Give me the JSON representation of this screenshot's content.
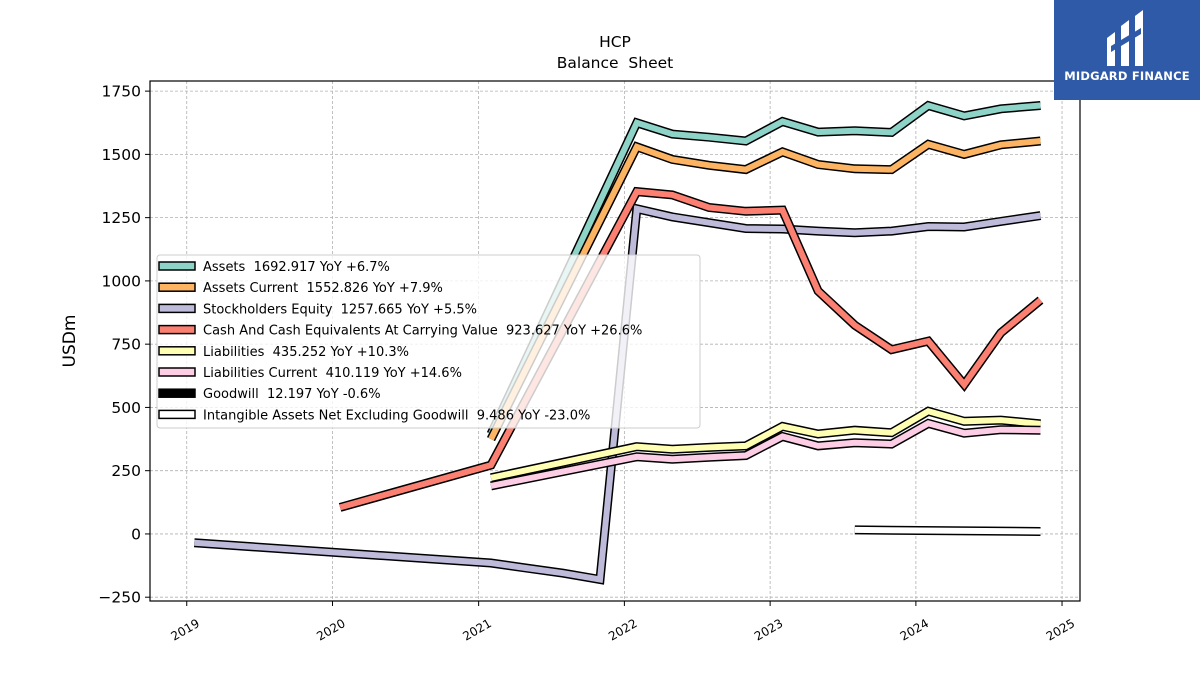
{
  "brand": {
    "name": "MIDGARD FINANCE",
    "bg_color": "#2f5aa8"
  },
  "chart_data": {
    "type": "line",
    "title": "HCP",
    "subtitle": "Balance  Sheet",
    "xlabel": "",
    "ylabel": "USDm",
    "xlim": [
      "2018-10-01",
      "2025-02-15"
    ],
    "ylim": [
      -265,
      1790
    ],
    "x_ticks": [
      "2019",
      "2020",
      "2021",
      "2022",
      "2023",
      "2024",
      "2025"
    ],
    "y_ticks": [
      -250,
      0,
      250,
      500,
      750,
      1000,
      1250,
      1500,
      1750
    ],
    "y_tick_labels": [
      "−250",
      "0",
      "250",
      "500",
      "750",
      "1000",
      "1250",
      "1500",
      "1750"
    ],
    "grid": true,
    "legend_position": "center-left",
    "series": [
      {
        "name": "Assets",
        "legend": "Assets  1692.917 YoY +6.7%",
        "color": "#8dd3c7",
        "x": [
          "2021-02-01",
          "2022-02-01",
          "2022-05-01",
          "2022-08-01",
          "2022-11-01",
          "2023-02-01",
          "2023-05-01",
          "2023-08-01",
          "2023-11-01",
          "2024-02-01",
          "2024-05-01",
          "2024-08-01",
          "2024-11-08"
        ],
        "values": [
          395,
          1625,
          1580,
          1568,
          1553,
          1630,
          1588,
          1593,
          1587,
          1693,
          1652,
          1680,
          1693
        ]
      },
      {
        "name": "Assets Current",
        "legend": "Assets Current  1552.826 YoY +7.9%",
        "color": "#fdb462",
        "x": [
          "2021-02-01",
          "2022-02-01",
          "2022-05-01",
          "2022-08-01",
          "2022-11-01",
          "2023-02-01",
          "2023-05-01",
          "2023-08-01",
          "2023-11-01",
          "2024-02-01",
          "2024-05-01",
          "2024-08-01",
          "2024-11-08"
        ],
        "values": [
          375,
          1530,
          1480,
          1457,
          1440,
          1510,
          1460,
          1443,
          1440,
          1540,
          1500,
          1538,
          1553
        ]
      },
      {
        "name": "Stockholders Equity",
        "legend": "Stockholders Equity  1257.665 YoY +5.5%",
        "color": "#bebada",
        "x": [
          "2019-01-20",
          "2021-02-01",
          "2021-05-01",
          "2021-08-01",
          "2021-11-01",
          "2022-02-01",
          "2022-05-01",
          "2022-08-01",
          "2022-11-01",
          "2023-02-01",
          "2023-05-01",
          "2023-08-01",
          "2023-11-01",
          "2024-02-01",
          "2024-05-01",
          "2024-08-01",
          "2024-11-08"
        ],
        "values": [
          -35,
          -115,
          -135,
          -155,
          -180,
          1285,
          1253,
          1230,
          1207,
          1205,
          1197,
          1190,
          1197,
          1215,
          1213,
          1235,
          1258
        ]
      },
      {
        "name": "Cash And Cash Equivalents At Carrying Value",
        "legend": "Cash And Cash Equivalents At Carrying Value  923.627 YoY +26.6%",
        "color": "#fb8072",
        "x": [
          "2020-01-20",
          "2021-02-01",
          "2022-02-01",
          "2022-05-01",
          "2022-08-01",
          "2022-11-01",
          "2023-02-01",
          "2023-05-01",
          "2023-08-01",
          "2023-11-01",
          "2024-02-01",
          "2024-05-01",
          "2024-08-01",
          "2024-11-08"
        ],
        "values": [
          105,
          272,
          1353,
          1340,
          1290,
          1275,
          1280,
          960,
          825,
          728,
          762,
          590,
          795,
          924
        ]
      },
      {
        "name": "Liabilities",
        "legend": "Liabilities  435.252 YoY +10.3%",
        "color": "#ffffb3",
        "x": [
          "2021-02-01",
          "2022-02-01",
          "2022-05-01",
          "2022-08-01",
          "2022-11-01",
          "2023-02-01",
          "2023-05-01",
          "2023-08-01",
          "2023-11-01",
          "2024-02-01",
          "2024-05-01",
          "2024-08-01",
          "2024-11-08"
        ],
        "values": [
          222,
          345,
          335,
          342,
          348,
          425,
          395,
          410,
          400,
          485,
          445,
          450,
          435
        ]
      },
      {
        "name": "Liabilities Current",
        "legend": "Liabilities Current  410.119 YoY +14.6%",
        "color": "#fccde5",
        "x": [
          "2021-02-01",
          "2022-02-01",
          "2022-05-01",
          "2022-08-01",
          "2022-11-01",
          "2023-02-01",
          "2023-05-01",
          "2023-08-01",
          "2023-11-01",
          "2024-02-01",
          "2024-05-01",
          "2024-08-01",
          "2024-11-08"
        ],
        "values": [
          190,
          305,
          295,
          303,
          310,
          385,
          348,
          360,
          355,
          437,
          398,
          412,
          410
        ]
      },
      {
        "name": "Goodwill",
        "legend": "Goodwill  12.197 YoY -0.6%",
        "color": "#000000",
        "x": [],
        "values": []
      },
      {
        "name": "Intangible Assets Net Excluding Goodwill",
        "legend": "Intangible Assets Net Excluding Goodwill  9.486 YoY -23.0%",
        "color": "#ffffff",
        "x": [
          "2023-08-01",
          "2024-11-08"
        ],
        "values": [
          16,
          9.5
        ]
      }
    ]
  }
}
